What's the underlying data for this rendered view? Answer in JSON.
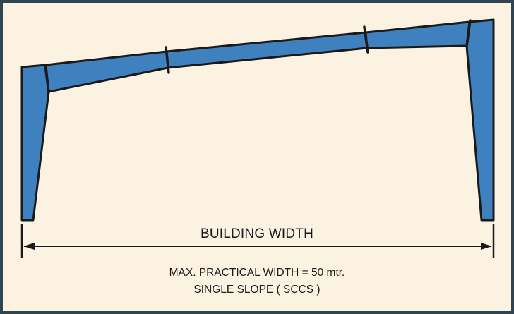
{
  "colors": {
    "background": "#fbf2e2",
    "border": "#2f4550",
    "member_fill": "#3f80bf",
    "line": "#1a1a1a"
  },
  "dimension": {
    "label": "BUILDING WIDTH"
  },
  "notes": {
    "max_width": "MAX. PRACTICAL WIDTH = 50 mtr.",
    "slope_type": "SINGLE SLOPE ( SCCS )"
  }
}
